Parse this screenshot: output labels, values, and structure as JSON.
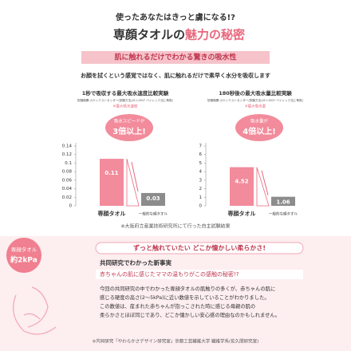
{
  "header": {
    "lead": "使ったあなたはきっと虜になる!?",
    "title_main": "専顔タオルの",
    "title_accent": "魅力の秘密",
    "band": "肌に触れるだけでわかる驚きの吸水性",
    "description": "お顔を拭くという感覚ではなく、肌に触れるだけで素早く水分を吸収します"
  },
  "chart_data": [
    {
      "type": "bar",
      "title": "1秒で吸収する最大吸水速度比較実験",
      "subtitle": "試験機関:カケンテストセンター(試験方法:JIS L1907 バイレック法に準拠)",
      "note": "※最大吸水速度",
      "annotation": [
        "吸水スピードが",
        "3倍以上!"
      ],
      "categories": [
        "専顔タオル",
        "一般的な綿タオル"
      ],
      "values": [
        0.11,
        0.03
      ],
      "colors": [
        "#f28b9b",
        "#8c8c8c"
      ],
      "ylim": [
        0,
        0.14
      ],
      "yticks": [
        0,
        0.02,
        0.04,
        0.06,
        0.08,
        0.1,
        0.12,
        0.14
      ]
    },
    {
      "type": "bar",
      "title": "180秒後の最大吸水量比較実験",
      "subtitle": "試験機関:カケンテストセンター(試験方法:JIS L1907 バイレック法に準拠)",
      "note": "※最大吸水量",
      "annotation": [
        "吸水量が",
        "4倍以上!"
      ],
      "categories": [
        "専顔タオル",
        "一般的な綿タオル"
      ],
      "values": [
        4.52,
        1.06
      ],
      "colors": [
        "#f28b9b",
        "#8c8c8c"
      ],
      "ylim": [
        0,
        7
      ],
      "yticks": [
        0,
        1,
        2,
        3,
        4,
        5,
        6,
        7
      ]
    }
  ],
  "footnote": "※大阪府立産業技術研究所にて行った自主試験結果",
  "story": {
    "badge": [
      "専顔タオル",
      "約2kPa"
    ],
    "catch": "ずっと触れていたい どこか懐かしい柔らかさ!",
    "heading": "共同研究でわかった新事実",
    "question": "赤ちゃんの肌に感じたママの温もりがこの感触の秘密!?",
    "body": [
      "今回の共同研究の中でわかった専顔タオルの肌触りの多くが、赤ちゃんの肌に",
      "感じる硬度の高さ(2〜5kPa)に近い数値を示していることがわかりました。",
      "この数値は、産まれた赤ちゃんが抱っこされた時に感じる母親の肌の",
      "柔らかさとほぼ同じであり、どこか懐かしい安心感の理由なのかもしれません。"
    ],
    "credit": "※共同研究「やわらかさデザイン研究室」京都工芸繊維大学 繊維学系(佐久間研究室)"
  }
}
